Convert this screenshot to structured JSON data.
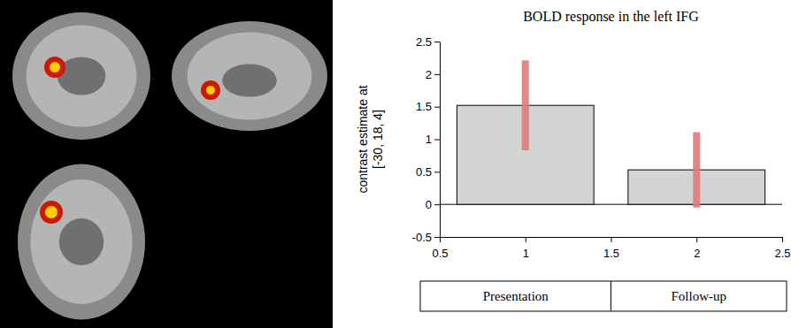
{
  "chart_data": {
    "type": "bar",
    "title": "BOLD response in the left IFG",
    "y_label": [
      "contrast estimate at",
      "[-30, 18, 4]"
    ],
    "x": [
      1,
      2
    ],
    "categories": [
      "Presentation",
      "Follow-up"
    ],
    "values": [
      1.52,
      0.53
    ],
    "errors": [
      0.69,
      0.58
    ],
    "color": "#d4d4d4",
    "xlim": [
      0.5,
      2.5
    ],
    "xticks": [
      0.5,
      1,
      1.5,
      2,
      2.5
    ],
    "ylim": [
      -0.5,
      2.5
    ],
    "yticks": [
      -0.5,
      0,
      0.5,
      1,
      1.5,
      2,
      2.5
    ],
    "grid": false
  }
}
